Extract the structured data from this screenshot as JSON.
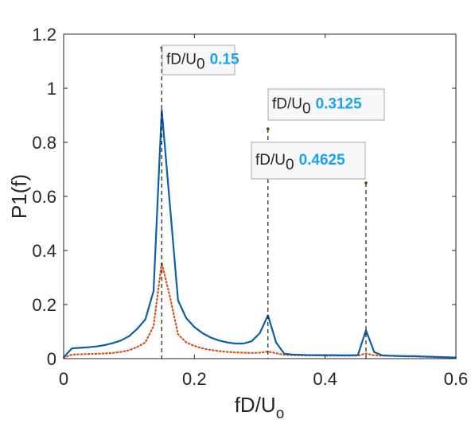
{
  "chart_data": {
    "type": "line",
    "title": "",
    "xlabel": "fD/U",
    "xlabel_sub": "o",
    "ylabel": "P1(f)",
    "xlim": [
      0,
      0.6
    ],
    "ylim": [
      0,
      1.2
    ],
    "xticks": [
      0,
      0.2,
      0.4,
      0.6
    ],
    "xtick_labels": [
      "0",
      "0.2",
      "0.4",
      "0.6"
    ],
    "yticks": [
      0,
      0.2,
      0.4,
      0.6,
      0.8,
      1,
      1.2
    ],
    "ytick_labels": [
      "0",
      "0.2",
      "0.4",
      "0.6",
      "0.8",
      "1",
      "1.2"
    ],
    "grid": false,
    "series": [
      {
        "style": "solid",
        "color": "#0c5fa8",
        "x": [
          0,
          0.0125,
          0.025,
          0.0375,
          0.05,
          0.0625,
          0.075,
          0.0875,
          0.1,
          0.1125,
          0.125,
          0.1375,
          0.15,
          0.1625,
          0.175,
          0.1875,
          0.2,
          0.2125,
          0.225,
          0.2375,
          0.25,
          0.2625,
          0.275,
          0.2875,
          0.3,
          0.3125,
          0.325,
          0.3375,
          0.35,
          0.3625,
          0.375,
          0.3875,
          0.4,
          0.4125,
          0.425,
          0.4375,
          0.45,
          0.4625,
          0.475,
          0.4875,
          0.5,
          0.5125,
          0.525,
          0.5375,
          0.55,
          0.5625,
          0.575,
          0.5875,
          0.6
        ],
        "y": [
          0.005,
          0.038,
          0.04,
          0.042,
          0.045,
          0.05,
          0.057,
          0.067,
          0.083,
          0.11,
          0.145,
          0.25,
          0.92,
          0.57,
          0.215,
          0.15,
          0.117,
          0.094,
          0.078,
          0.067,
          0.06,
          0.056,
          0.056,
          0.064,
          0.094,
          0.16,
          0.06,
          0.018,
          0.015,
          0.014,
          0.013,
          0.013,
          0.013,
          0.013,
          0.012,
          0.012,
          0.013,
          0.105,
          0.024,
          0.012,
          0.011,
          0.01,
          0.009,
          0.009,
          0.008,
          0.007,
          0.006,
          0.005,
          0.004
        ]
      },
      {
        "style": "dotted",
        "color": "#d95319",
        "x": [
          0,
          0.0125,
          0.025,
          0.0375,
          0.05,
          0.0625,
          0.075,
          0.0875,
          0.1,
          0.1125,
          0.125,
          0.1375,
          0.15,
          0.1625,
          0.175,
          0.1875,
          0.2,
          0.2125,
          0.225,
          0.2375,
          0.25,
          0.2625,
          0.275,
          0.2875,
          0.3,
          0.3125,
          0.325,
          0.3375,
          0.35,
          0.3625,
          0.375,
          0.3875,
          0.4,
          0.4125,
          0.425,
          0.4375,
          0.45,
          0.4625,
          0.475,
          0.4875,
          0.5,
          0.5125,
          0.525,
          0.5375,
          0.55,
          0.5625,
          0.575,
          0.5875,
          0.6
        ],
        "y": [
          0.003,
          0.015,
          0.016,
          0.017,
          0.018,
          0.019,
          0.021,
          0.025,
          0.031,
          0.043,
          0.06,
          0.12,
          0.355,
          0.23,
          0.09,
          0.06,
          0.047,
          0.038,
          0.032,
          0.028,
          0.025,
          0.023,
          0.022,
          0.021,
          0.022,
          0.026,
          0.02,
          0.014,
          0.013,
          0.012,
          0.012,
          0.012,
          0.011,
          0.011,
          0.011,
          0.011,
          0.011,
          0.019,
          0.012,
          0.011,
          0.01,
          0.009,
          0.008,
          0.008,
          0.007,
          0.006,
          0.005,
          0.005,
          0.004
        ]
      }
    ],
    "vlines": [
      {
        "x": 0.15,
        "y_top": 1.15
      },
      {
        "x": 0.3125,
        "y_top": 0.85
      },
      {
        "x": 0.4625,
        "y_top": 0.65
      }
    ],
    "annotations": [
      {
        "prefix": "fD/U",
        "sub": "0",
        "value": "0.15"
      },
      {
        "prefix": "fD/U",
        "sub": "0",
        "value": "0.3125"
      },
      {
        "prefix": "fD/U",
        "sub": "0",
        "value": "0.4625"
      }
    ]
  }
}
